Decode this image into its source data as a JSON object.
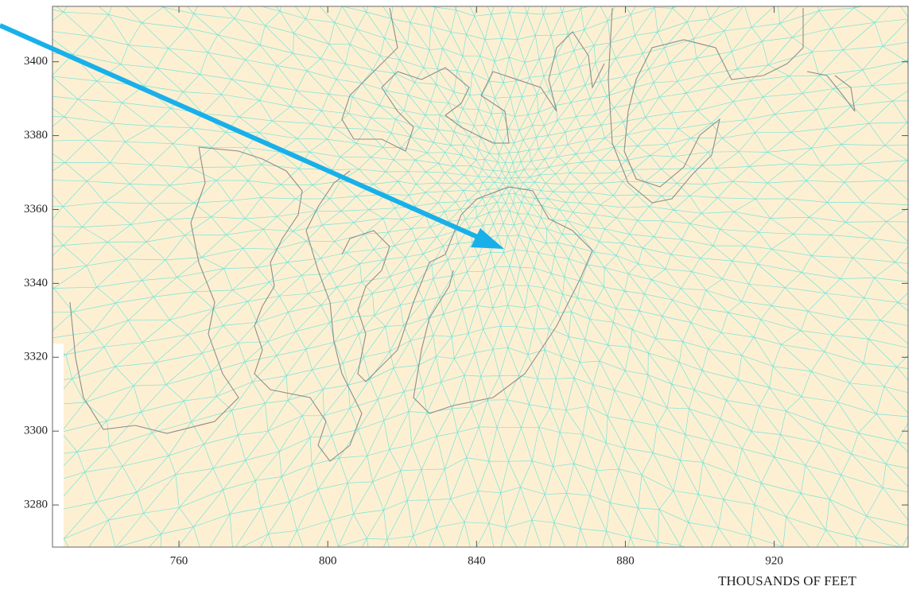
{
  "axes": {
    "xlabel": "THOUSANDS OF FEET",
    "xlim": [
      726,
      956
    ],
    "ylim": [
      3268.6,
      3415
    ],
    "xticks": [
      760,
      800,
      840,
      880,
      920
    ],
    "yticks": [
      3280,
      3300,
      3320,
      3340,
      3360,
      3380,
      3400
    ]
  }
}
